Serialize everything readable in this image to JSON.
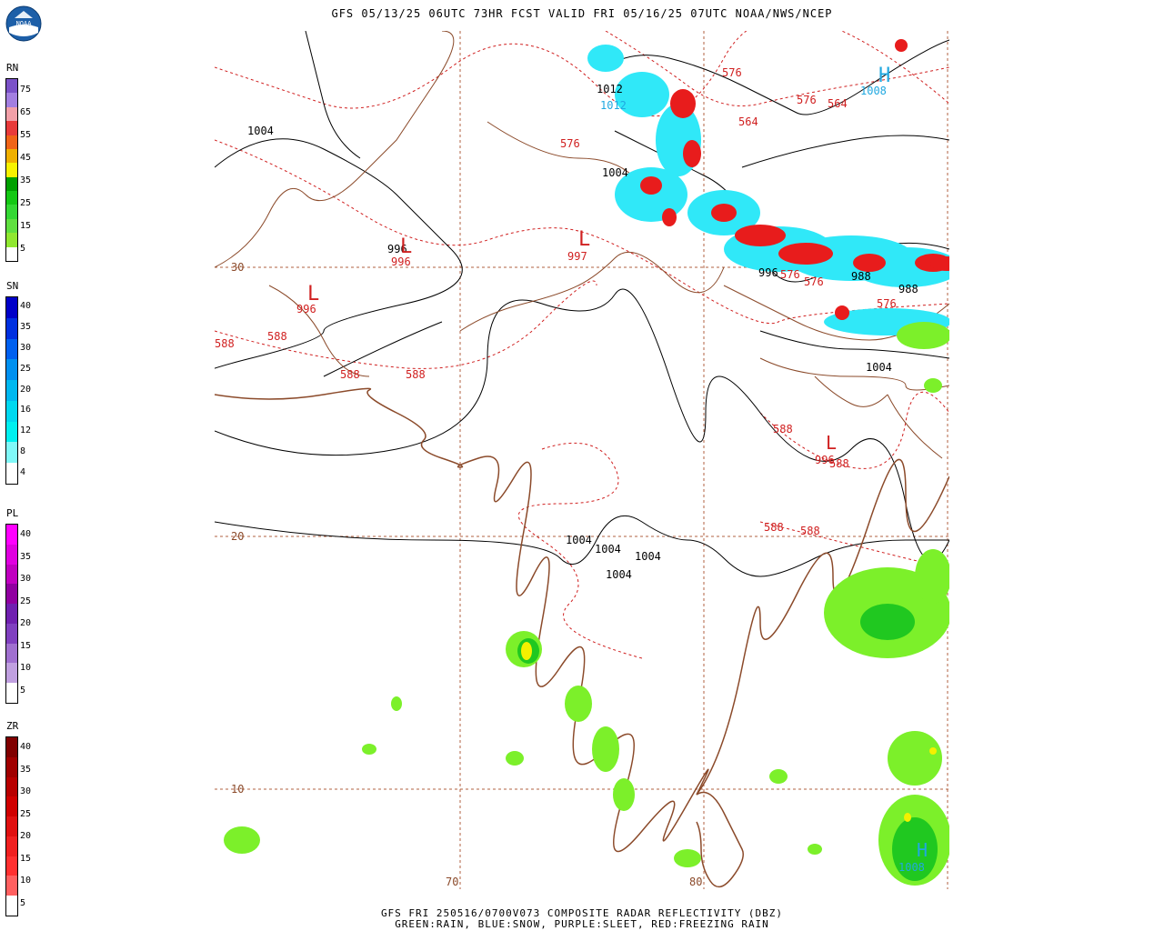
{
  "header": {
    "title": "GFS 05/13/25 06UTC 73HR FCST VALID FRI 05/16/25 07UTC NOAA/NWS/NCEP"
  },
  "footer": {
    "line1": "GFS FRI 250516/0700V073 COMPOSITE RADAR REFLECTIVITY (DBZ)",
    "line2": "GREEN:RAIN, BLUE:SNOW, PURPLE:SLEET, RED:FREEZING RAIN"
  },
  "logo": {
    "text": "NOAA",
    "color": "#1d5fa8"
  },
  "legends": [
    {
      "title": "RN",
      "ticks": [
        "75",
        "65",
        "55",
        "45",
        "35",
        "25",
        "15",
        "5"
      ],
      "colors": [
        "#7b52c8",
        "#a37fe0",
        "#f2a0a8",
        "#e83a3a",
        "#f06418",
        "#f0b000",
        "#f8f200",
        "#00a000",
        "#14c814",
        "#34d834",
        "#60e040",
        "#90e830",
        "#ffffff"
      ]
    },
    {
      "title": "SN",
      "ticks": [
        "40",
        "35",
        "30",
        "25",
        "20",
        "16",
        "12",
        "8",
        "4"
      ],
      "colors": [
        "#0000c8",
        "#0030e0",
        "#0060f0",
        "#0090f0",
        "#00b8f0",
        "#00d8f0",
        "#00f0f0",
        "#80f8f8",
        "#ffffff"
      ]
    },
    {
      "title": "PL",
      "ticks": [
        "40",
        "35",
        "30",
        "25",
        "20",
        "15",
        "10",
        "5"
      ],
      "colors": [
        "#ff00ff",
        "#e000e0",
        "#c000c0",
        "#9000a0",
        "#7020b0",
        "#8040c0",
        "#a070d0",
        "#c0a0e0",
        "#ffffff"
      ]
    },
    {
      "title": "ZR",
      "ticks": [
        "40",
        "35",
        "30",
        "25",
        "20",
        "15",
        "10",
        "5"
      ],
      "colors": [
        "#800000",
        "#a00000",
        "#b80000",
        "#d00000",
        "#e01010",
        "#f02020",
        "#ff3030",
        "#ff6060",
        "#ffffff"
      ]
    }
  ],
  "map": {
    "gridlabels": [
      "30",
      "20",
      "10",
      "70",
      "80"
    ],
    "pressure_labels": [
      "1004",
      "1012",
      "1004",
      "996",
      "988",
      "988",
      "1004",
      "1004",
      "1004",
      "1004",
      "1004",
      "996"
    ],
    "height_labels": [
      "576",
      "564",
      "564",
      "576",
      "997",
      "996",
      "996",
      "588",
      "588",
      "588",
      "588",
      "576",
      "576",
      "576",
      "996",
      "588",
      "588",
      "588",
      "588",
      "1012",
      "1008",
      "1008",
      "576"
    ],
    "centers": [
      "H",
      "L",
      "L",
      "L",
      "L",
      "H"
    ],
    "colors": {
      "coast": "#8b4a2a",
      "isobar": "#000000",
      "height": "#d02020",
      "grid": "#b06040",
      "rain_light": "#7cf02a",
      "rain_mid": "#20c820",
      "rain_dark": "#00a000",
      "rain_yellow": "#f4f000",
      "snow_light": "#30e8f8",
      "snow_mid": "#10c8e8",
      "zr": "#e81c1c",
      "blue_label": "#20a8e0"
    }
  }
}
